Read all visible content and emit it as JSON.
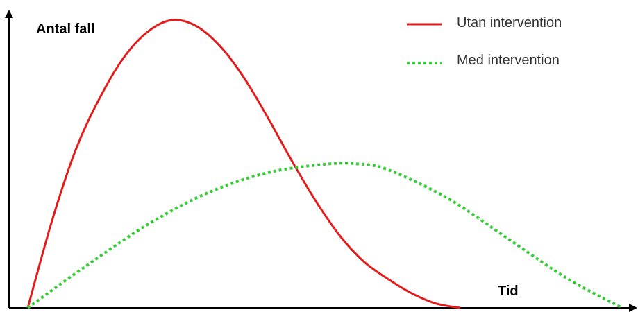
{
  "chart_data": {
    "type": "line",
    "title": "",
    "ylabel": "Antal fall",
    "xlabel": "Tid",
    "grid": false,
    "legend_position": "top-right",
    "axis_ticks": "none",
    "xlim": [
      0,
      100
    ],
    "ylim": [
      0,
      100
    ],
    "series": [
      {
        "name": "Utan intervention",
        "color": "#e31b1b",
        "style": "solid",
        "x": [
          0,
          4,
          8,
          12,
          16,
          20,
          24,
          28,
          32,
          36,
          40,
          44,
          48,
          52,
          56,
          60,
          64,
          68,
          72
        ],
        "y": [
          0,
          30,
          55,
          73,
          87,
          96,
          100,
          98,
          91,
          80,
          66,
          51,
          37,
          25,
          16,
          10,
          5,
          1.5,
          0
        ]
      },
      {
        "name": "Med intervention",
        "color": "#33cc33",
        "style": "dotted",
        "x": [
          0,
          10,
          20,
          30,
          40,
          50,
          55,
          60,
          70,
          80,
          90,
          99
        ],
        "y": [
          0,
          15,
          29,
          40,
          47,
          50,
          50,
          48,
          38,
          24,
          10,
          0
        ]
      }
    ]
  }
}
